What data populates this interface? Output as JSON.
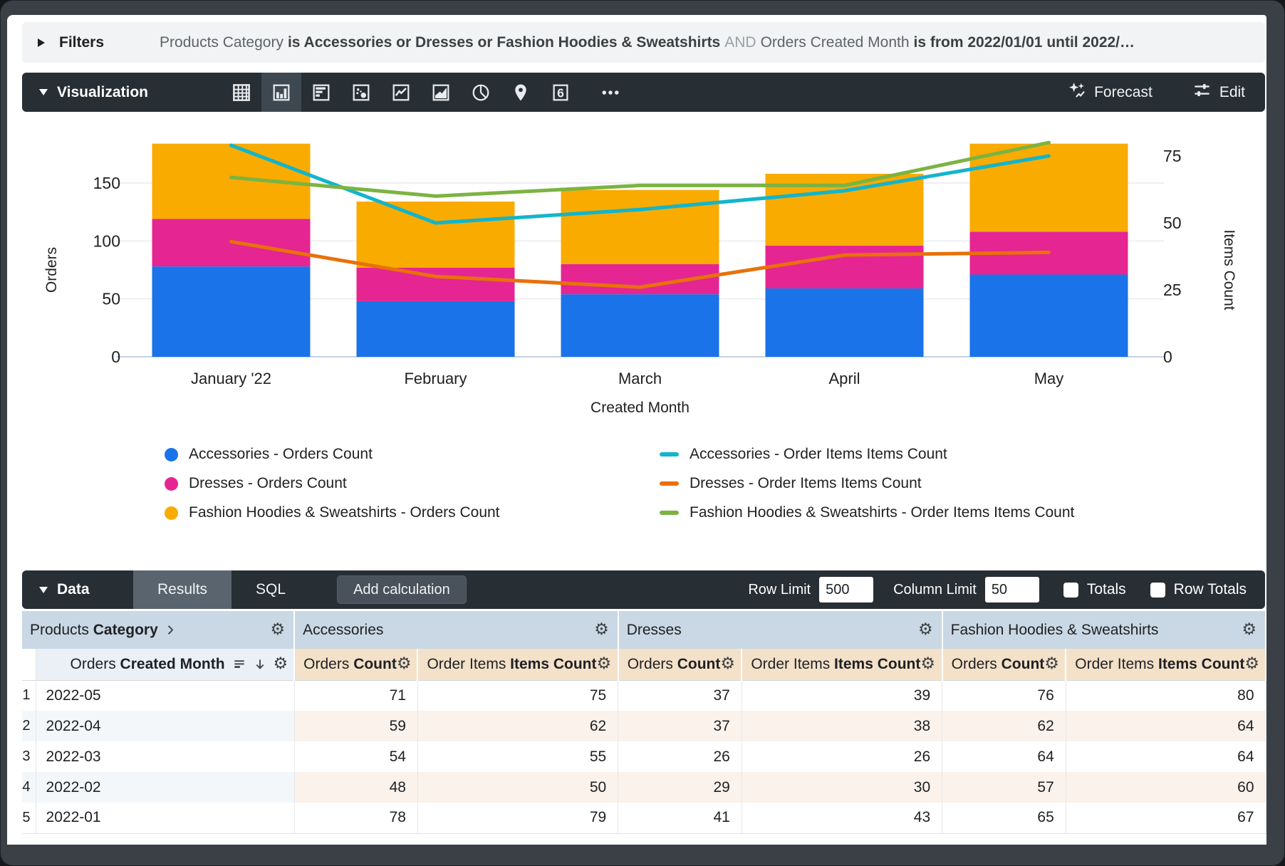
{
  "filters_bar": {
    "label": "Filters",
    "segments": [
      {
        "text": "Products Category",
        "style": "normal"
      },
      {
        "text": "is Accessories or Dresses or Fashion Hoodies & Sweatshirts",
        "style": "bold"
      },
      {
        "text": "AND",
        "style": "muted"
      },
      {
        "text": "Orders Created Month",
        "style": "normal"
      },
      {
        "text": "is from 2022/01/01 until 2022/…",
        "style": "bold"
      }
    ]
  },
  "viz_bar": {
    "label": "Visualization",
    "icons": [
      {
        "icon": "table-chart-icon",
        "selected": false
      },
      {
        "icon": "column-chart-icon",
        "selected": true
      },
      {
        "icon": "bar-chart-icon",
        "selected": false
      },
      {
        "icon": "scatter-chart-icon",
        "selected": false
      },
      {
        "icon": "line-chart-icon",
        "selected": false
      },
      {
        "icon": "area-chart-icon",
        "selected": false
      },
      {
        "icon": "pie-chart-icon",
        "selected": false
      },
      {
        "icon": "map-chart-icon",
        "selected": false
      },
      {
        "icon": "single-value-icon",
        "selected": false
      },
      {
        "icon": "more-options-icon",
        "selected": false
      }
    ],
    "forecast_label": "Forecast",
    "edit_label": "Edit"
  },
  "chart_data": {
    "type": "combo: stacked column + line",
    "categories": [
      "January '22",
      "February",
      "March",
      "April",
      "May"
    ],
    "xlabel": "Created Month",
    "left_axis": {
      "label": "Orders",
      "ticks": [
        0,
        50,
        100,
        150
      ],
      "max": 209
    },
    "right_axis": {
      "label": "Items Count",
      "ticks": [
        0,
        25,
        50,
        75
      ],
      "max": 90
    },
    "grid": true,
    "legend_position": "bottom",
    "bar_series": [
      {
        "name": "Accessories - Orders Count",
        "color": "#1A73E8",
        "values": [
          78,
          48,
          54,
          59,
          71
        ]
      },
      {
        "name": "Dresses - Orders Count",
        "color": "#E52592",
        "values": [
          41,
          29,
          26,
          37,
          37
        ]
      },
      {
        "name": "Fashion Hoodies & Sweatshirts - Orders Count",
        "color": "#F9AB00",
        "values": [
          65,
          57,
          64,
          62,
          76
        ]
      }
    ],
    "line_series": [
      {
        "name": "Accessories - Order Items Items Count",
        "color": "#12B5CB",
        "values": [
          79,
          50,
          55,
          62,
          75
        ]
      },
      {
        "name": "Dresses - Order Items Items Count",
        "color": "#E8710A",
        "values": [
          43,
          30,
          26,
          38,
          39
        ]
      },
      {
        "name": "Fashion Hoodies & Sweatshirts - Order Items Items Count",
        "color": "#7CB342",
        "values": [
          67,
          60,
          64,
          64,
          80
        ]
      }
    ]
  },
  "data_bar": {
    "label": "Data",
    "tabs": [
      {
        "label": "Results",
        "selected": true
      },
      {
        "label": "SQL",
        "selected": false
      }
    ],
    "add_calculation_label": "Add calculation",
    "row_limit": {
      "label": "Row Limit",
      "value": "500"
    },
    "column_limit": {
      "label": "Column Limit",
      "value": "50"
    },
    "totals": {
      "label": "Totals",
      "checked": false
    },
    "row_totals": {
      "label": "Row Totals",
      "checked": false
    }
  },
  "table": {
    "dimension_header": {
      "normal": "Products",
      "bold": "Category"
    },
    "row_header": {
      "normal": "Orders",
      "bold": "Created Month"
    },
    "groups": [
      "Accessories",
      "Dresses",
      "Fashion Hoodies & Sweatshirts"
    ],
    "measures": [
      {
        "normal": "Orders",
        "bold": "Count"
      },
      {
        "normal": "Order Items",
        "bold": "Items Count"
      }
    ],
    "rows": [
      {
        "n": "1",
        "month": "2022-05",
        "values": [
          71,
          75,
          37,
          39,
          76,
          80
        ]
      },
      {
        "n": "2",
        "month": "2022-04",
        "values": [
          59,
          62,
          37,
          38,
          62,
          64
        ]
      },
      {
        "n": "3",
        "month": "2022-03",
        "values": [
          54,
          55,
          26,
          26,
          64,
          64
        ]
      },
      {
        "n": "4",
        "month": "2022-02",
        "values": [
          48,
          50,
          29,
          30,
          57,
          60
        ]
      },
      {
        "n": "5",
        "month": "2022-01",
        "values": [
          78,
          79,
          41,
          43,
          65,
          67
        ]
      }
    ]
  }
}
